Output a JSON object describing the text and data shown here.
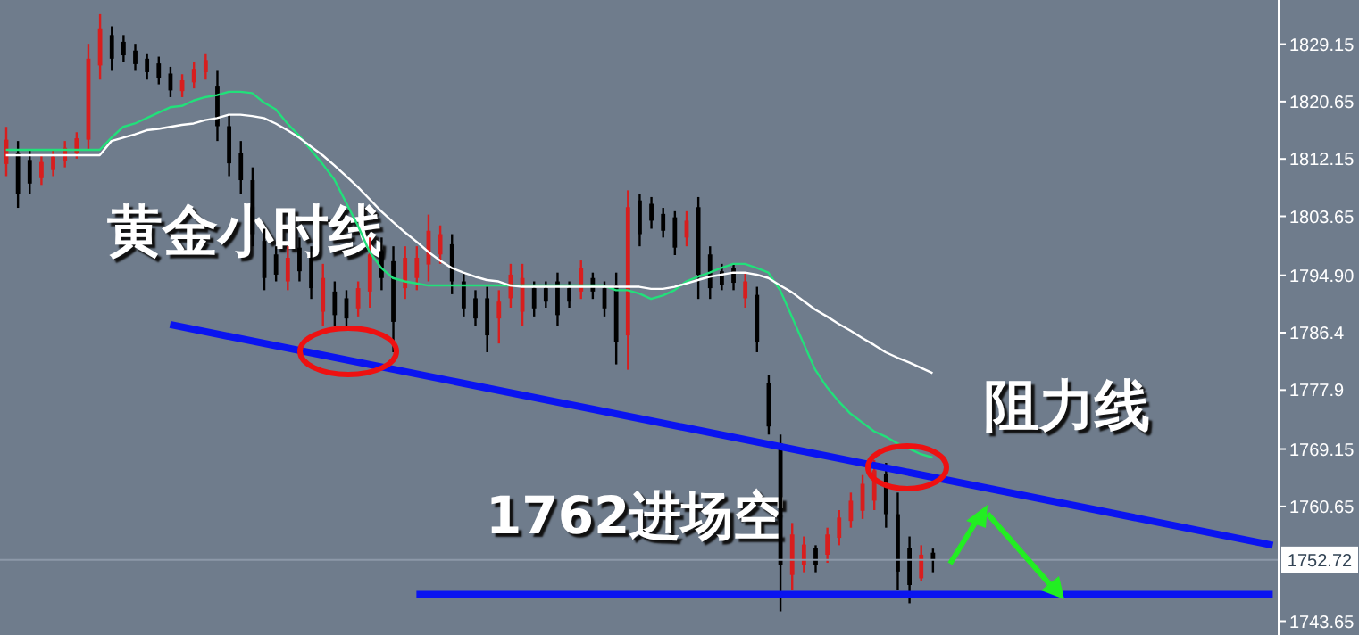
{
  "chart_data": {
    "type": "candlestick",
    "annotations": [
      "黄金小时线",
      "阻力线",
      "1762进场空"
    ],
    "categories": [
      null,
      null,
      null,
      null,
      null,
      null,
      null,
      null,
      null,
      null,
      null,
      null,
      null,
      null,
      null,
      null,
      null,
      null,
      null,
      null,
      null,
      null,
      null,
      null,
      null,
      null,
      null,
      null,
      null,
      null,
      null,
      null,
      null,
      null,
      null,
      null,
      null,
      null,
      null,
      null,
      null,
      null,
      null,
      null,
      null,
      null,
      null,
      null,
      null,
      null,
      null,
      null,
      null,
      null,
      null,
      null,
      null,
      null,
      null,
      null,
      null,
      null,
      null,
      null,
      null,
      null,
      null,
      null,
      null,
      null,
      null,
      null,
      null,
      null,
      null,
      null,
      null,
      null,
      null,
      null,
      null,
      null,
      null,
      null,
      null,
      null,
      null,
      null,
      null,
      null,
      null,
      null,
      null,
      null,
      null,
      null,
      null,
      null,
      null,
      null,
      null,
      null,
      null,
      null,
      null,
      null,
      null,
      null,
      null
    ],
    "ohlc": [
      [
        1811.4,
        1816.9,
        1809.6,
        1815.0
      ],
      [
        1813.0,
        1814.8,
        1804.9,
        1807.0
      ],
      [
        1812.0,
        1813.5,
        1807.0,
        1808.5
      ],
      [
        1809.3,
        1812.7,
        1808.3,
        1811.7
      ],
      [
        1810.5,
        1813.5,
        1809.6,
        1812.5
      ],
      [
        1811.8,
        1814.8,
        1810.9,
        1813.8
      ],
      [
        1813.0,
        1816.1,
        1812.2,
        1815.2
      ],
      [
        1815.0,
        1829.2,
        1813.5,
        1827.0
      ],
      [
        1826.0,
        1833.6,
        1823.9,
        1831.5
      ],
      [
        1830.5,
        1831.8,
        1825.2,
        1827.0
      ],
      [
        1829.5,
        1830.5,
        1826.5,
        1827.5
      ],
      [
        1828.2,
        1829.2,
        1825.2,
        1826.2
      ],
      [
        1827.0,
        1827.8,
        1823.9,
        1825.0
      ],
      [
        1826.3,
        1827.3,
        1823.2,
        1824.2
      ],
      [
        1824.8,
        1825.8,
        1821.3,
        1822.3
      ],
      [
        1822.2,
        1824.7,
        1821.3,
        1823.8
      ],
      [
        1823.5,
        1826.5,
        1822.6,
        1825.5
      ],
      [
        1825.0,
        1827.8,
        1823.9,
        1826.8
      ],
      [
        1823.0,
        1825.2,
        1814.8,
        1817.0
      ],
      [
        1817.0,
        1818.7,
        1809.6,
        1811.5
      ],
      [
        1813.0,
        1814.8,
        1807.0,
        1809.0
      ],
      [
        1809.0,
        1810.9,
        1799.2,
        1801.0
      ],
      [
        1800.0,
        1801.8,
        1792.7,
        1794.5
      ],
      [
        1798.0,
        1799.2,
        1794.0,
        1795.0
      ],
      [
        1794.0,
        1799.2,
        1792.7,
        1797.5
      ],
      [
        1799.0,
        1800.5,
        1794.0,
        1795.5
      ],
      [
        1797.5,
        1799.2,
        1791.4,
        1793.0
      ],
      [
        1789.5,
        1796.6,
        1787.4,
        1794.5
      ],
      [
        1792.5,
        1794.0,
        1787.4,
        1789.0
      ],
      [
        1791.5,
        1792.7,
        1787.4,
        1788.5
      ],
      [
        1790.0,
        1794.0,
        1788.8,
        1793.0
      ],
      [
        1792.5,
        1800.5,
        1790.1,
        1798.0
      ],
      [
        1798.5,
        1800.5,
        1792.7,
        1794.5
      ],
      [
        1797.0,
        1799.2,
        1783.5,
        1788.0
      ],
      [
        1793.0,
        1799.2,
        1791.4,
        1797.5
      ],
      [
        1794.5,
        1799.2,
        1792.7,
        1797.5
      ],
      [
        1796.5,
        1803.9,
        1794.0,
        1801.5
      ],
      [
        1798.0,
        1802.3,
        1796.6,
        1801.0
      ],
      [
        1799.5,
        1801.0,
        1792.1,
        1794.0
      ],
      [
        1794.0,
        1795.3,
        1788.8,
        1790.0
      ],
      [
        1791.5,
        1792.7,
        1787.4,
        1788.5
      ],
      [
        1791.5,
        1793.2,
        1783.5,
        1786.0
      ],
      [
        1788.5,
        1792.7,
        1784.8,
        1791.0
      ],
      [
        1791.5,
        1796.6,
        1790.1,
        1795.0
      ],
      [
        1789.5,
        1796.6,
        1787.4,
        1794.5
      ],
      [
        1793.0,
        1794.0,
        1788.8,
        1790.0
      ],
      [
        1793.0,
        1794.0,
        1790.1,
        1791.0
      ],
      [
        1794.0,
        1795.3,
        1787.4,
        1789.0
      ],
      [
        1793.0,
        1794.0,
        1790.1,
        1791.0
      ],
      [
        1792.5,
        1797.1,
        1791.4,
        1796.0
      ],
      [
        1794.5,
        1795.3,
        1791.4,
        1792.5
      ],
      [
        1793.0,
        1794.0,
        1788.8,
        1790.0
      ],
      [
        1793.5,
        1795.3,
        1781.7,
        1785.0
      ],
      [
        1786.0,
        1807.5,
        1780.9,
        1805.0
      ],
      [
        1806.0,
        1807.0,
        1799.2,
        1801.0
      ],
      [
        1805.5,
        1806.5,
        1801.8,
        1803.0
      ],
      [
        1804.0,
        1804.9,
        1800.5,
        1801.5
      ],
      [
        1803.5,
        1804.4,
        1797.9,
        1799.0
      ],
      [
        1800.5,
        1804.4,
        1799.2,
        1803.0
      ],
      [
        1805.0,
        1806.5,
        1791.4,
        1795.0
      ],
      [
        1798.0,
        1799.2,
        1791.4,
        1793.0
      ],
      [
        1795.5,
        1796.6,
        1792.7,
        1793.5
      ],
      [
        1796.0,
        1796.6,
        1792.7,
        1793.8
      ],
      [
        1791.5,
        1795.3,
        1790.1,
        1794.0
      ],
      [
        1792.0,
        1793.2,
        1783.5,
        1785.0
      ],
      [
        1779.0,
        1780.1,
        1771.3,
        1772.5
      ],
      [
        1770.0,
        1771.3,
        1745.1,
        1752.0
      ],
      [
        1750.5,
        1758.2,
        1748.3,
        1756.5
      ],
      [
        1752.0,
        1756.2,
        1750.9,
        1755.0
      ],
      [
        1754.5,
        1754.9,
        1750.9,
        1752.0
      ],
      [
        1753.5,
        1757.5,
        1752.3,
        1756.5
      ],
      [
        1756.0,
        1760.1,
        1754.9,
        1759.0
      ],
      [
        1758.5,
        1762.7,
        1757.5,
        1761.5
      ],
      [
        1760.0,
        1765.3,
        1758.8,
        1764.0
      ],
      [
        1761.5,
        1767.5,
        1760.1,
        1766.0
      ],
      [
        1765.5,
        1767.1,
        1757.5,
        1759.5
      ],
      [
        1759.5,
        1762.7,
        1748.3,
        1751.0
      ],
      [
        1754.5,
        1756.2,
        1746.3,
        1749.0
      ],
      [
        1750.0,
        1754.9,
        1749.6,
        1753.5
      ],
      [
        1753.8,
        1754.4,
        1750.9,
        1752.7
      ],
      null,
      null,
      null,
      null,
      null,
      null,
      null,
      null,
      null,
      null,
      null,
      null,
      null,
      null,
      null,
      null,
      null,
      null,
      null,
      null,
      null,
      null,
      null,
      null,
      null,
      null,
      null,
      null,
      null
    ],
    "colors": [
      "#d81e1e",
      "#000000",
      "#000000",
      "#d81e1e",
      "#d81e1e",
      "#d81e1e",
      "#d81e1e",
      "#d81e1e",
      "#d81e1e",
      "#000000",
      "#000000",
      "#000000",
      "#000000",
      "#000000",
      "#000000",
      "#d81e1e",
      "#d81e1e",
      "#d81e1e",
      "#000000",
      "#000000",
      "#000000",
      "#000000",
      "#000000",
      "#000000",
      "#d81e1e",
      "#000000",
      "#000000",
      "#d81e1e",
      "#000000",
      "#000000",
      "#d81e1e",
      "#d81e1e",
      "#000000",
      "#000000",
      "#d81e1e",
      "#d81e1e",
      "#d81e1e",
      "#d81e1e",
      "#000000",
      "#000000",
      "#000000",
      "#000000",
      "#d81e1e",
      "#d81e1e",
      "#d81e1e",
      "#000000",
      "#000000",
      "#000000",
      "#000000",
      "#d81e1e",
      "#000000",
      "#000000",
      "#000000",
      "#d81e1e",
      "#000000",
      "#000000",
      "#000000",
      "#000000",
      "#d81e1e",
      "#000000",
      "#000000",
      "#000000",
      "#000000",
      "#d81e1e",
      "#000000",
      "#000000",
      "#000000",
      "#d81e1e",
      "#d81e1e",
      "#000000",
      "#d81e1e",
      "#d81e1e",
      "#d81e1e",
      "#d81e1e",
      "#d81e1e",
      "#000000",
      "#000000",
      "#000000",
      "#d81e1e",
      "#000000",
      null,
      null,
      null,
      null,
      null,
      null,
      null,
      null,
      null,
      null,
      null,
      null,
      null,
      null,
      null,
      null,
      null,
      null,
      null,
      null,
      null,
      null,
      null,
      null,
      null,
      null,
      null,
      null,
      null
    ],
    "series": [
      {
        "type": "line",
        "color": "#22e07a",
        "values": [
          1813.5,
          1813.5,
          1813.5,
          1813.5,
          1813.5,
          1813.5,
          1813.5,
          1813.5,
          1813.5,
          1815.3,
          1816.9,
          1817.4,
          1818.2,
          1819.0,
          1819.8,
          1820.0,
          1820.8,
          1821.3,
          1821.6,
          1822.1,
          1822.1,
          1821.9,
          1820.5,
          1819.5,
          1817.4,
          1815.6,
          1813.5,
          1811.4,
          1809.1,
          1805.7,
          1802.3,
          1798.4,
          1796.0,
          1794.5,
          1794.0,
          1793.7,
          1793.4,
          1793.4,
          1793.4,
          1793.4,
          1793.4,
          1793.4,
          1793.4,
          1793.4,
          1793.4,
          1793.4,
          1793.4,
          1793.4,
          1793.4,
          1793.4,
          1793.4,
          1793.4,
          1792.7,
          1792.7,
          1792.2,
          1791.4,
          1791.9,
          1792.7,
          1794.0,
          1794.7,
          1795.3,
          1796.0,
          1796.6,
          1796.6,
          1796.0,
          1795.3,
          1792.7,
          1788.8,
          1784.8,
          1780.9,
          1778.3,
          1776.2,
          1774.4,
          1773.1,
          1771.8,
          1771.0,
          1770.0,
          1769.2,
          1768.4,
          1767.9,
          null,
          null,
          null,
          null,
          null,
          null,
          null,
          null,
          null,
          null,
          null,
          null,
          null,
          null,
          null,
          null,
          null,
          null,
          null,
          null,
          null,
          null,
          null,
          null,
          null,
          null,
          null,
          null,
          null
        ]
      },
      {
        "type": "line",
        "color": "#ffffff",
        "values": [
          1812.7,
          1812.7,
          1812.7,
          1812.7,
          1812.7,
          1812.7,
          1812.7,
          1812.7,
          1812.7,
          1814.8,
          1815.3,
          1815.8,
          1816.4,
          1816.6,
          1816.9,
          1817.2,
          1817.4,
          1817.9,
          1818.2,
          1818.7,
          1818.7,
          1818.5,
          1818.2,
          1817.4,
          1816.4,
          1815.3,
          1814.0,
          1812.7,
          1811.2,
          1809.6,
          1808.0,
          1806.2,
          1804.4,
          1802.8,
          1801.3,
          1799.9,
          1798.4,
          1797.1,
          1796.0,
          1795.3,
          1794.7,
          1794.2,
          1794.0,
          1793.4,
          1793.2,
          1793.2,
          1793.2,
          1793.2,
          1793.2,
          1793.2,
          1793.2,
          1793.2,
          1793.2,
          1793.2,
          1793.2,
          1792.9,
          1792.9,
          1793.2,
          1793.7,
          1794.2,
          1794.7,
          1795.0,
          1795.3,
          1795.3,
          1795.0,
          1794.5,
          1793.4,
          1792.4,
          1791.1,
          1789.8,
          1788.8,
          1787.7,
          1786.7,
          1785.6,
          1784.6,
          1783.5,
          1782.7,
          1782.0,
          1781.2,
          1780.4,
          null,
          null,
          null,
          null,
          null,
          null,
          null,
          null,
          null,
          null,
          null,
          null,
          null,
          null,
          null,
          null,
          null,
          null,
          null,
          null,
          null,
          null,
          null,
          null,
          null,
          null,
          null,
          null,
          null
        ]
      },
      {
        "type": "line",
        "color": "#0a14f0",
        "values": [
          null,
          null,
          null,
          null,
          null,
          null,
          null,
          null,
          null,
          null,
          null,
          null,
          null,
          null,
          1787.6,
          null,
          null,
          null,
          null,
          null,
          null,
          null,
          null,
          null,
          null,
          null,
          null,
          null,
          null,
          null,
          null,
          null,
          null,
          null,
          null,
          null,
          null,
          null,
          null,
          null,
          null,
          null,
          null,
          null,
          null,
          null,
          null,
          null,
          null,
          null,
          null,
          null,
          null,
          null,
          null,
          null,
          null,
          null,
          null,
          null,
          null,
          null,
          null,
          null,
          null,
          null,
          null,
          null,
          null,
          null,
          null,
          null,
          null,
          null,
          null,
          null,
          null,
          null,
          null,
          null,
          null,
          null,
          null,
          null,
          null,
          null,
          null,
          null,
          null,
          null,
          null,
          null,
          null,
          null,
          null,
          null,
          null,
          null,
          null,
          null,
          null,
          null,
          null,
          null,
          null,
          null,
          null,
          null,
          1754.9
        ]
      },
      {
        "type": "line",
        "color": "#0a14f0",
        "values": [
          null,
          null,
          null,
          null,
          null,
          null,
          null,
          null,
          null,
          null,
          null,
          null,
          null,
          null,
          null,
          null,
          null,
          null,
          null,
          null,
          null,
          null,
          null,
          null,
          null,
          null,
          null,
          null,
          null,
          null,
          null,
          null,
          null,
          null,
          null,
          1747.6,
          null,
          null,
          null,
          null,
          null,
          null,
          null,
          null,
          null,
          null,
          null,
          null,
          null,
          null,
          null,
          null,
          null,
          null,
          null,
          null,
          null,
          null,
          null,
          null,
          null,
          null,
          null,
          null,
          null,
          null,
          null,
          null,
          null,
          null,
          null,
          null,
          null,
          null,
          null,
          null,
          null,
          null,
          null,
          null,
          null,
          null,
          null,
          null,
          null,
          null,
          null,
          null,
          null,
          null,
          null,
          null,
          null,
          null,
          null,
          null,
          null,
          null,
          null,
          null,
          null,
          null,
          null,
          null,
          null,
          null,
          null,
          null,
          1747.6
        ]
      }
    ],
    "ylim": [
      1741.6,
      1835.7
    ],
    "yticks": [
      1743.65,
      1760.65,
      1769.15,
      1777.9,
      1786.4,
      {
        "value": 1794.9,
        "label": "1794.90"
      },
      1803.65,
      1812.15,
      1820.65,
      1829.15
    ],
    "ref_lines": [
      {
        "axis": "y",
        "value": 1752.72,
        "label": "1752.72",
        "color": "#8c98a8"
      }
    ],
    "grid": false,
    "legend": false
  }
}
